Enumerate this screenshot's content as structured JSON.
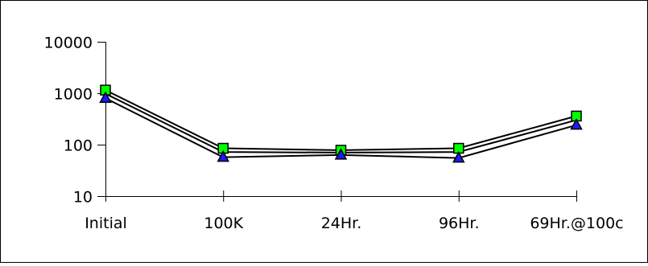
{
  "chart_data": {
    "type": "line",
    "title": "",
    "xlabel": "",
    "ylabel": "",
    "categories": [
      "Initial",
      "100K",
      "24Hr.",
      "96Hr.",
      "69Hr.@100c"
    ],
    "yscale": "log",
    "ylim": [
      10,
      10000
    ],
    "yticks": [
      "10",
      "100",
      "1000",
      "10000"
    ],
    "grid": false,
    "legend": "none",
    "series": [
      {
        "marker": "square",
        "color": "#00ff00",
        "values": [
          1150,
          85,
          78,
          85,
          360
        ]
      },
      {
        "marker": "none",
        "color": "#000000",
        "values": [
          980,
          72,
          70,
          72,
          300
        ]
      },
      {
        "marker": "triangle",
        "color": "#1a1aff",
        "values": [
          800,
          57,
          63,
          55,
          240
        ]
      }
    ]
  }
}
